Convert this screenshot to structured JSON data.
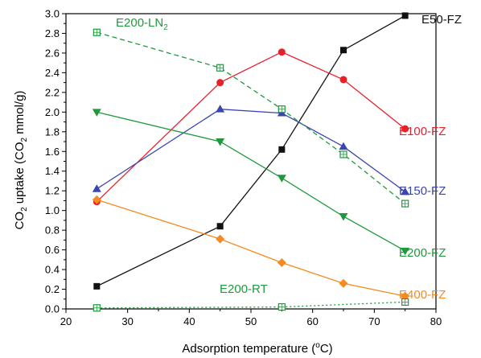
{
  "chart_data": {
    "type": "line",
    "xlabel": {
      "pre": "Adsorption temperature (",
      "sup": "o",
      "post": "C)"
    },
    "ylabel": {
      "a": "CO",
      "sub1": "2",
      "b": " uptake (CO",
      "sub2": "2",
      "c": " mmol/g)"
    },
    "xlim": [
      20,
      80
    ],
    "ylim": [
      0,
      3.0
    ],
    "x_ticks": [
      "20",
      "30",
      "40",
      "50",
      "60",
      "70",
      "80"
    ],
    "y_ticks": [
      "0.0",
      "0.2",
      "0.4",
      "0.6",
      "0.8",
      "1.0",
      "1.2",
      "1.4",
      "1.6",
      "1.8",
      "2.0",
      "2.2",
      "2.4",
      "2.6",
      "2.8",
      "3.0"
    ],
    "grid": false,
    "series": [
      {
        "key": "e50",
        "name": "E50-FZ",
        "color": "#111111",
        "marker": "square",
        "dash": "none",
        "x": [
          25,
          45,
          55,
          65,
          75
        ],
        "y": [
          0.23,
          0.84,
          1.62,
          2.63,
          2.98
        ]
      },
      {
        "key": "e100",
        "name": "E100-FZ",
        "color": "#e8202a",
        "marker": "circle",
        "dash": "none",
        "x": [
          25,
          45,
          55,
          65,
          75
        ],
        "y": [
          1.09,
          2.3,
          2.61,
          2.33,
          1.83
        ]
      },
      {
        "key": "e150",
        "name": "E150-FZ",
        "color": "#3a46b0",
        "marker": "triangle-up",
        "dash": "none",
        "x": [
          25,
          45,
          55,
          65,
          75
        ],
        "y": [
          1.22,
          2.03,
          1.99,
          1.65,
          1.19
        ]
      },
      {
        "key": "e200",
        "name": "E200-FZ",
        "color": "#1e9a3c",
        "marker": "triangle-down",
        "dash": "none",
        "x": [
          25,
          45,
          55,
          65,
          75
        ],
        "y": [
          2.0,
          1.7,
          1.33,
          0.94,
          0.59
        ]
      },
      {
        "key": "e400",
        "name": "E400-FZ",
        "color": "#f58a1f",
        "marker": "diamond",
        "dash": "none",
        "x": [
          25,
          45,
          55,
          65,
          75
        ],
        "y": [
          1.11,
          0.71,
          0.47,
          0.26,
          0.13
        ]
      },
      {
        "key": "e200ln2",
        "name": "E200-LN",
        "name_sub": "2",
        "color": "#1e9a3c",
        "marker": "open-square",
        "dash": "dashed",
        "x": [
          25,
          45,
          55,
          65,
          75
        ],
        "y": [
          2.81,
          2.45,
          2.03,
          1.57,
          1.07
        ]
      },
      {
        "key": "e200rt",
        "name": "E200-RT",
        "color": "#1e9a3c",
        "marker": "open-square",
        "dash": "dotted",
        "x": [
          25,
          55,
          75
        ],
        "y": [
          0.01,
          0.02,
          0.07
        ]
      }
    ]
  }
}
